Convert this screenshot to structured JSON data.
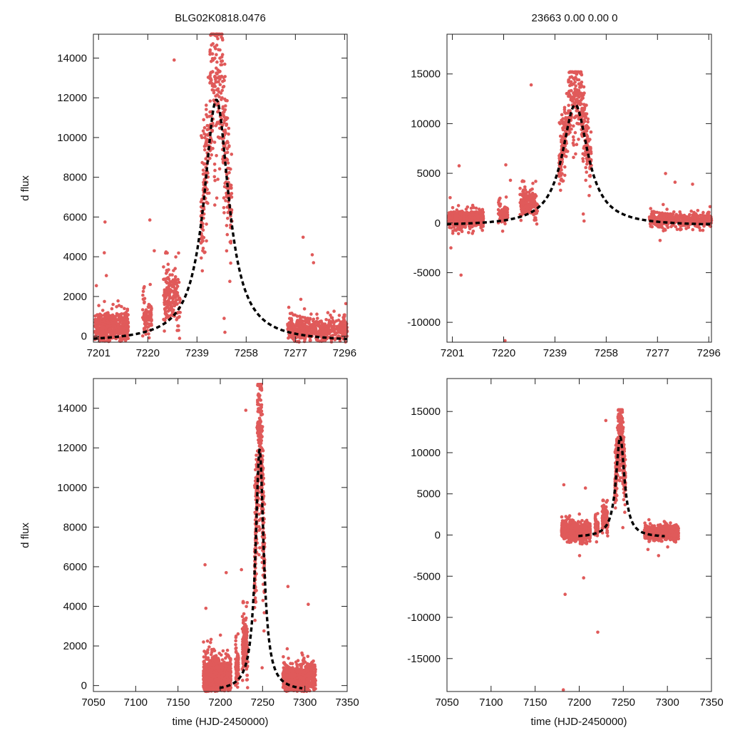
{
  "chart_data": [
    {
      "id": "top-left",
      "type": "scatter",
      "title": "BLG02K0818.0476",
      "xlabel": "",
      "ylabel": "d flux",
      "xlim": [
        7199,
        7297
      ],
      "ylim": [
        -300,
        15200
      ],
      "xticks": [
        7201,
        7220,
        7239,
        7258,
        7277,
        7296
      ],
      "yticks": [
        0,
        2000,
        4000,
        6000,
        8000,
        10000,
        12000,
        14000
      ],
      "fit": {
        "t0": 7246.5,
        "peak": 11900,
        "width": 5.8,
        "baseline": -300,
        "x_from": 7199,
        "x_to": 7297
      },
      "data_x_range": [
        7199,
        7297
      ],
      "outliers": [
        [
          7203.5,
          5750
        ],
        [
          7203.2,
          4200
        ],
        [
          7204.0,
          3050
        ],
        [
          7220.8,
          5850
        ],
        [
          7222.5,
          4300
        ],
        [
          7230.2,
          13900
        ],
        [
          7243.0,
          10600
        ],
        [
          7249.5,
          900
        ],
        [
          7249.8,
          200
        ],
        [
          7280.0,
          4980
        ],
        [
          7283.5,
          4100
        ],
        [
          7284.0,
          3700
        ]
      ]
    },
    {
      "id": "top-right",
      "type": "scatter",
      "title": "23663  0.00  0.00  0",
      "xlabel": "",
      "ylabel": "",
      "xlim": [
        7199,
        7297
      ],
      "ylim": [
        -12000,
        19000
      ],
      "xticks": [
        7201,
        7220,
        7239,
        7258,
        7277,
        7296
      ],
      "yticks": [
        -10000,
        -5000,
        0,
        5000,
        10000,
        15000
      ],
      "fit": {
        "t0": 7246.5,
        "peak": 11900,
        "width": 5.8,
        "baseline": -300,
        "x_from": 7199,
        "x_to": 7297
      },
      "data_x_range": [
        7199,
        7297
      ],
      "outliers": [
        [
          7203.5,
          5750
        ],
        [
          7204.2,
          -5250
        ],
        [
          7220.8,
          5850
        ],
        [
          7220.5,
          -11850
        ],
        [
          7222.5,
          4300
        ],
        [
          7230.2,
          13900
        ],
        [
          7243.0,
          10600
        ],
        [
          7249.5,
          900
        ],
        [
          7249.8,
          200
        ],
        [
          7280.0,
          4980
        ],
        [
          7283.5,
          4100
        ],
        [
          7290.0,
          3900
        ]
      ]
    },
    {
      "id": "bottom-left",
      "type": "scatter",
      "title": "",
      "xlabel": "time (HJD-2450000)",
      "ylabel": "d flux",
      "xlim": [
        7050,
        7350
      ],
      "ylim": [
        -300,
        15500
      ],
      "xticks": [
        7050,
        7100,
        7150,
        7200,
        7250,
        7300,
        7350
      ],
      "yticks": [
        0,
        2000,
        4000,
        6000,
        8000,
        10000,
        12000,
        14000
      ],
      "fit": {
        "t0": 7246.5,
        "peak": 11900,
        "width": 5.8,
        "baseline": -300,
        "x_from": 7199,
        "x_to": 7297
      },
      "data_x_range": [
        7180,
        7313
      ],
      "outliers": [
        [
          7182.0,
          6100
        ],
        [
          7183.0,
          3900
        ],
        [
          7207.0,
          5700
        ],
        [
          7225.0,
          5850
        ],
        [
          7230.2,
          13900
        ],
        [
          7280.0,
          5000
        ],
        [
          7304.0,
          4100
        ],
        [
          7249.5,
          900
        ]
      ]
    },
    {
      "id": "bottom-right",
      "type": "scatter",
      "title": "",
      "xlabel": "time (HJD-2450000)",
      "ylabel": "",
      "xlim": [
        7050,
        7350
      ],
      "ylim": [
        -19000,
        19000
      ],
      "xticks": [
        7050,
        7100,
        7150,
        7200,
        7250,
        7300,
        7350
      ],
      "yticks": [
        -15000,
        -10000,
        -5000,
        0,
        5000,
        10000,
        15000
      ],
      "fit": {
        "t0": 7246.5,
        "peak": 11900,
        "width": 5.8,
        "baseline": -300,
        "x_from": 7199,
        "x_to": 7297
      },
      "data_x_range": [
        7180,
        7313
      ],
      "outliers": [
        [
          7182.0,
          -18800
        ],
        [
          7184.0,
          -7200
        ],
        [
          7182.5,
          6100
        ],
        [
          7207.0,
          5700
        ],
        [
          7205.0,
          -5200
        ],
        [
          7221.0,
          -11800
        ],
        [
          7230.2,
          13900
        ],
        [
          7249.5,
          900
        ],
        [
          7290.0,
          -2500
        ]
      ]
    }
  ],
  "colors": {
    "points": "#e05a5a",
    "fit": "#000000"
  }
}
